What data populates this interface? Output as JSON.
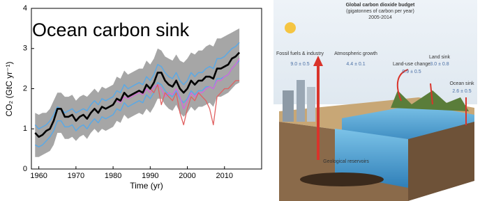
{
  "chart_data": {
    "type": "line",
    "title": "Ocean carbon sink",
    "xlabel": "Time (yr)",
    "ylabel": "CO₂ (GtC yr⁻¹)",
    "x": [
      1959,
      1960,
      1961,
      1962,
      1963,
      1964,
      1965,
      1966,
      1967,
      1968,
      1969,
      1970,
      1971,
      1972,
      1973,
      1974,
      1975,
      1976,
      1977,
      1978,
      1979,
      1980,
      1981,
      1982,
      1983,
      1984,
      1985,
      1986,
      1987,
      1988,
      1989,
      1990,
      1991,
      1992,
      1993,
      1994,
      1995,
      1996,
      1997,
      1998,
      1999,
      2000,
      2001,
      2002,
      2003,
      2004,
      2005,
      2006,
      2007,
      2008,
      2009,
      2010,
      2011,
      2012,
      2013,
      2014
    ],
    "xlim": [
      1958,
      2020
    ],
    "xticks": [
      1960,
      1970,
      1980,
      1990,
      2000,
      2010
    ],
    "ylim": [
      0,
      4
    ],
    "yticks": [
      0,
      1,
      2,
      3,
      4
    ],
    "band": {
      "color": "#a6a6a6",
      "upper": [
        1.4,
        1.35,
        1.4,
        1.4,
        1.5,
        1.7,
        1.9,
        1.9,
        1.8,
        1.8,
        1.85,
        1.7,
        1.8,
        1.85,
        1.8,
        1.9,
        2.0,
        1.9,
        2.05,
        2.0,
        2.05,
        2.1,
        2.3,
        2.25,
        2.45,
        2.35,
        2.4,
        2.45,
        2.5,
        2.5,
        2.7,
        2.6,
        2.75,
        3.0,
        2.95,
        2.8,
        2.75,
        2.7,
        2.85,
        2.7,
        2.65,
        2.75,
        2.9,
        2.85,
        2.95,
        2.95,
        3.05,
        3.1,
        3.05,
        3.25,
        3.25,
        3.3,
        3.35,
        3.4,
        3.45,
        3.5
      ],
      "lower": [
        0.3,
        0.3,
        0.35,
        0.4,
        0.45,
        0.6,
        0.9,
        0.9,
        0.75,
        0.75,
        0.8,
        0.7,
        0.8,
        0.85,
        0.75,
        0.9,
        1.0,
        0.9,
        1.0,
        0.95,
        1.0,
        1.05,
        1.2,
        1.15,
        1.35,
        1.25,
        1.3,
        1.35,
        1.4,
        1.35,
        1.5,
        1.4,
        1.55,
        1.75,
        1.75,
        1.6,
        1.5,
        1.45,
        1.6,
        1.4,
        1.3,
        1.4,
        1.55,
        1.45,
        1.55,
        1.55,
        1.6,
        1.65,
        1.55,
        1.8,
        1.8,
        1.85,
        1.9,
        2.0,
        2.1,
        2.15
      ]
    },
    "series": [
      {
        "color": "#5aa9e6",
        "width": 1.5,
        "values": [
          1.1,
          1.0,
          1.05,
          1.1,
          1.2,
          1.35,
          1.55,
          1.5,
          1.4,
          1.45,
          1.5,
          1.4,
          1.45,
          1.5,
          1.45,
          1.6,
          1.7,
          1.6,
          1.75,
          1.7,
          1.75,
          1.8,
          1.95,
          1.9,
          2.1,
          2.0,
          2.05,
          2.1,
          2.15,
          2.1,
          2.3,
          2.2,
          2.35,
          2.6,
          2.55,
          2.4,
          2.3,
          2.25,
          2.4,
          2.2,
          2.1,
          2.2,
          2.4,
          2.3,
          2.4,
          2.4,
          2.5,
          2.55,
          2.5,
          2.75,
          2.75,
          2.8,
          2.9,
          3.0,
          3.05,
          3.15
        ]
      },
      {
        "color": "#5aa9e6",
        "width": 1.5,
        "values": [
          0.6,
          0.55,
          0.6,
          0.7,
          0.8,
          0.95,
          1.2,
          1.2,
          1.05,
          1.05,
          1.1,
          0.95,
          1.05,
          1.1,
          1.0,
          1.15,
          1.25,
          1.15,
          1.3,
          1.25,
          1.3,
          1.35,
          1.5,
          1.45,
          1.65,
          1.55,
          1.6,
          1.65,
          1.7,
          1.65,
          1.85,
          1.75,
          1.9,
          2.15,
          2.1,
          1.95,
          1.85,
          1.8,
          1.95,
          1.75,
          1.65,
          1.75,
          1.95,
          1.85,
          1.95,
          1.95,
          2.05,
          2.05,
          2.0,
          2.25,
          2.25,
          2.3,
          2.35,
          2.5,
          2.6,
          2.7
        ]
      },
      {
        "color": "#d966d9",
        "width": 1.3,
        "values": [
          null,
          null,
          null,
          null,
          null,
          null,
          null,
          null,
          null,
          null,
          null,
          null,
          null,
          null,
          null,
          null,
          null,
          null,
          null,
          null,
          null,
          null,
          1.7,
          1.65,
          1.8,
          1.75,
          1.8,
          1.85,
          1.9,
          1.85,
          2.0,
          1.9,
          2.05,
          2.1,
          2.0,
          1.8,
          1.9,
          1.85,
          2.0,
          1.8,
          1.5,
          1.7,
          1.9,
          1.8,
          1.9,
          1.9,
          2.0,
          2.05,
          2.0,
          2.2,
          2.2,
          2.3,
          2.35,
          2.5,
          2.6,
          2.75
        ]
      },
      {
        "color": "#e06060",
        "width": 1.3,
        "values": [
          null,
          null,
          null,
          null,
          null,
          null,
          null,
          null,
          null,
          null,
          null,
          null,
          null,
          null,
          null,
          null,
          null,
          null,
          null,
          null,
          null,
          null,
          null,
          null,
          null,
          null,
          null,
          null,
          null,
          null,
          null,
          2.0,
          1.9,
          2.1,
          1.6,
          1.9,
          1.8,
          1.7,
          1.9,
          1.4,
          1.1,
          1.5,
          1.8,
          1.7,
          1.9,
          1.8,
          1.7,
          1.5,
          1.1,
          1.8,
          1.9,
          2.0,
          2.0,
          2.1,
          2.2,
          2.2
        ]
      },
      {
        "color": "#000000",
        "width": 2.6,
        "values": [
          0.9,
          0.8,
          0.85,
          0.95,
          1.0,
          1.2,
          1.5,
          1.5,
          1.3,
          1.3,
          1.35,
          1.2,
          1.3,
          1.35,
          1.25,
          1.4,
          1.5,
          1.4,
          1.55,
          1.5,
          1.55,
          1.6,
          1.75,
          1.7,
          1.9,
          1.8,
          1.85,
          1.9,
          1.95,
          1.9,
          2.1,
          2.0,
          2.15,
          2.4,
          2.4,
          2.2,
          2.1,
          2.05,
          2.2,
          2.0,
          1.9,
          2.0,
          2.2,
          2.1,
          2.2,
          2.2,
          2.3,
          2.3,
          2.25,
          2.5,
          2.5,
          2.55,
          2.6,
          2.75,
          2.8,
          2.9
        ]
      }
    ]
  },
  "diagram": {
    "title": "Global carbon dioxide budget",
    "subtitle": "(gigatonnes of carbon per year)",
    "period": "2005-2014",
    "labels": [
      {
        "name": "Fossil fuels & industry",
        "value": "9.0 ± 0.5"
      },
      {
        "name": "Atmospheric growth",
        "value": "4.4 ± 0.1"
      },
      {
        "name": "Land-use change",
        "value": "0.9 ± 0.5"
      },
      {
        "name": "Land sink",
        "value": "3.0 ± 0.8"
      },
      {
        "name": "Ocean sink",
        "value": "2.6 ± 0.5"
      }
    ],
    "reservoir": "Geological reservoirs"
  }
}
